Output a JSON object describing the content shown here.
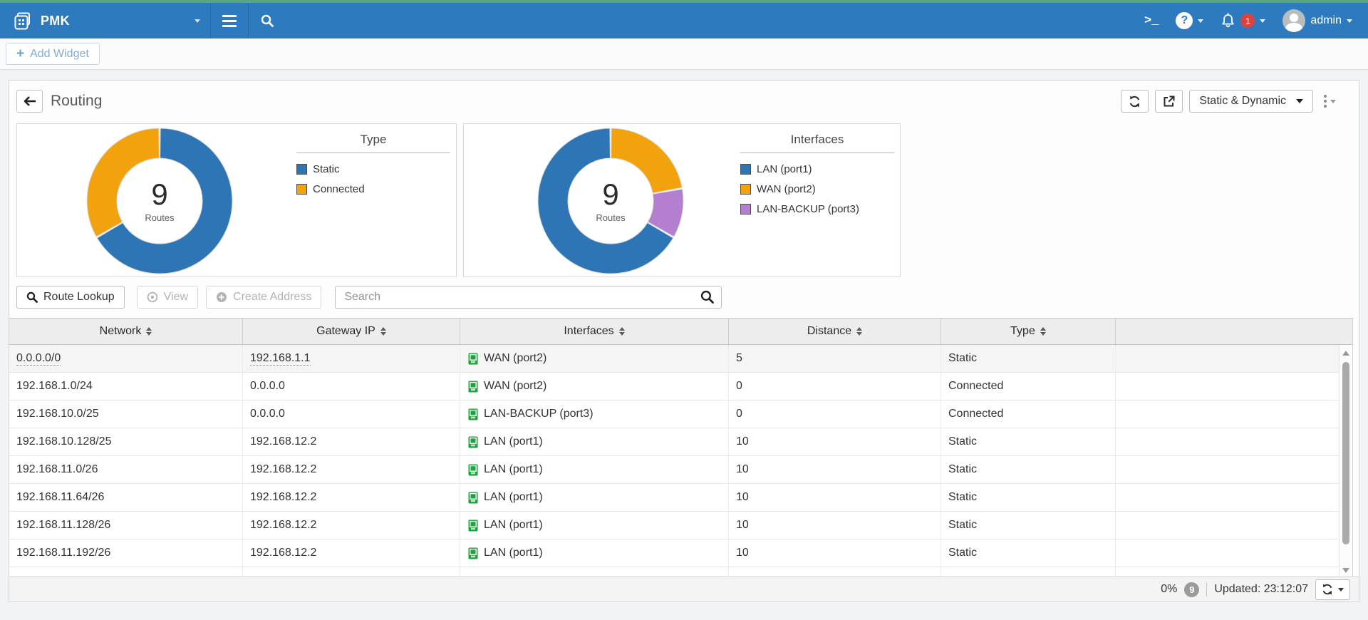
{
  "topbar": {
    "brand": "PMK",
    "cli_label": ">_",
    "help_glyph": "?",
    "notification_count": "1",
    "admin": "admin"
  },
  "subbar": {
    "add_widget": "Add Widget"
  },
  "panel": {
    "title": "Routing",
    "routes_filter": "Static & Dynamic"
  },
  "chart_data": [
    {
      "type": "pie",
      "subtype": "donut",
      "title": "Type",
      "center_value": "9",
      "center_label": "Routes",
      "rotation_deg": 0,
      "legend_position": "right",
      "segments": [
        {
          "label": "Static",
          "value": 6,
          "color": "#2e75b6"
        },
        {
          "label": "Connected",
          "value": 3,
          "color": "#f2a20d"
        }
      ]
    },
    {
      "type": "pie",
      "subtype": "donut",
      "title": "Interfaces",
      "center_value": "9",
      "center_label": "Routes",
      "rotation_deg": 120,
      "legend_position": "right",
      "segments": [
        {
          "label": "LAN (port1)",
          "value": 6,
          "color": "#2e75b6"
        },
        {
          "label": "WAN (port2)",
          "value": 2,
          "color": "#f2a20d"
        },
        {
          "label": "LAN-BACKUP (port3)",
          "value": 1,
          "color": "#b57fd0"
        }
      ]
    }
  ],
  "actions": {
    "route_lookup": "Route Lookup",
    "view": "View",
    "create_address": "Create Address",
    "search_placeholder": "Search"
  },
  "table": {
    "headers": [
      "Network",
      "Gateway IP",
      "Interfaces",
      "Distance",
      "Type"
    ],
    "rows": [
      {
        "network": "0.0.0.0/0",
        "gateway": "192.168.1.1",
        "interface": "WAN (port2)",
        "distance": "5",
        "type": "Static",
        "highlight": true
      },
      {
        "network": "192.168.1.0/24",
        "gateway": "0.0.0.0",
        "interface": "WAN (port2)",
        "distance": "0",
        "type": "Connected",
        "highlight": false
      },
      {
        "network": "192.168.10.0/25",
        "gateway": "0.0.0.0",
        "interface": "LAN-BACKUP (port3)",
        "distance": "0",
        "type": "Connected",
        "highlight": false
      },
      {
        "network": "192.168.10.128/25",
        "gateway": "192.168.12.2",
        "interface": "LAN (port1)",
        "distance": "10",
        "type": "Static",
        "highlight": false
      },
      {
        "network": "192.168.11.0/26",
        "gateway": "192.168.12.2",
        "interface": "LAN (port1)",
        "distance": "10",
        "type": "Static",
        "highlight": false
      },
      {
        "network": "192.168.11.64/26",
        "gateway": "192.168.12.2",
        "interface": "LAN (port1)",
        "distance": "10",
        "type": "Static",
        "highlight": false
      },
      {
        "network": "192.168.11.128/26",
        "gateway": "192.168.12.2",
        "interface": "LAN (port1)",
        "distance": "10",
        "type": "Static",
        "highlight": false
      },
      {
        "network": "192.168.11.192/26",
        "gateway": "192.168.12.2",
        "interface": "LAN (port1)",
        "distance": "10",
        "type": "Static",
        "highlight": false
      }
    ]
  },
  "footer": {
    "progress": "0%",
    "count_badge": "9",
    "updated": "Updated: 23:12:07"
  },
  "colors": {
    "navbar": "#2e7abf",
    "top_strip": "#57a77e",
    "notification_badge": "#d9453c",
    "interface_icon_green": "#1da33c"
  }
}
